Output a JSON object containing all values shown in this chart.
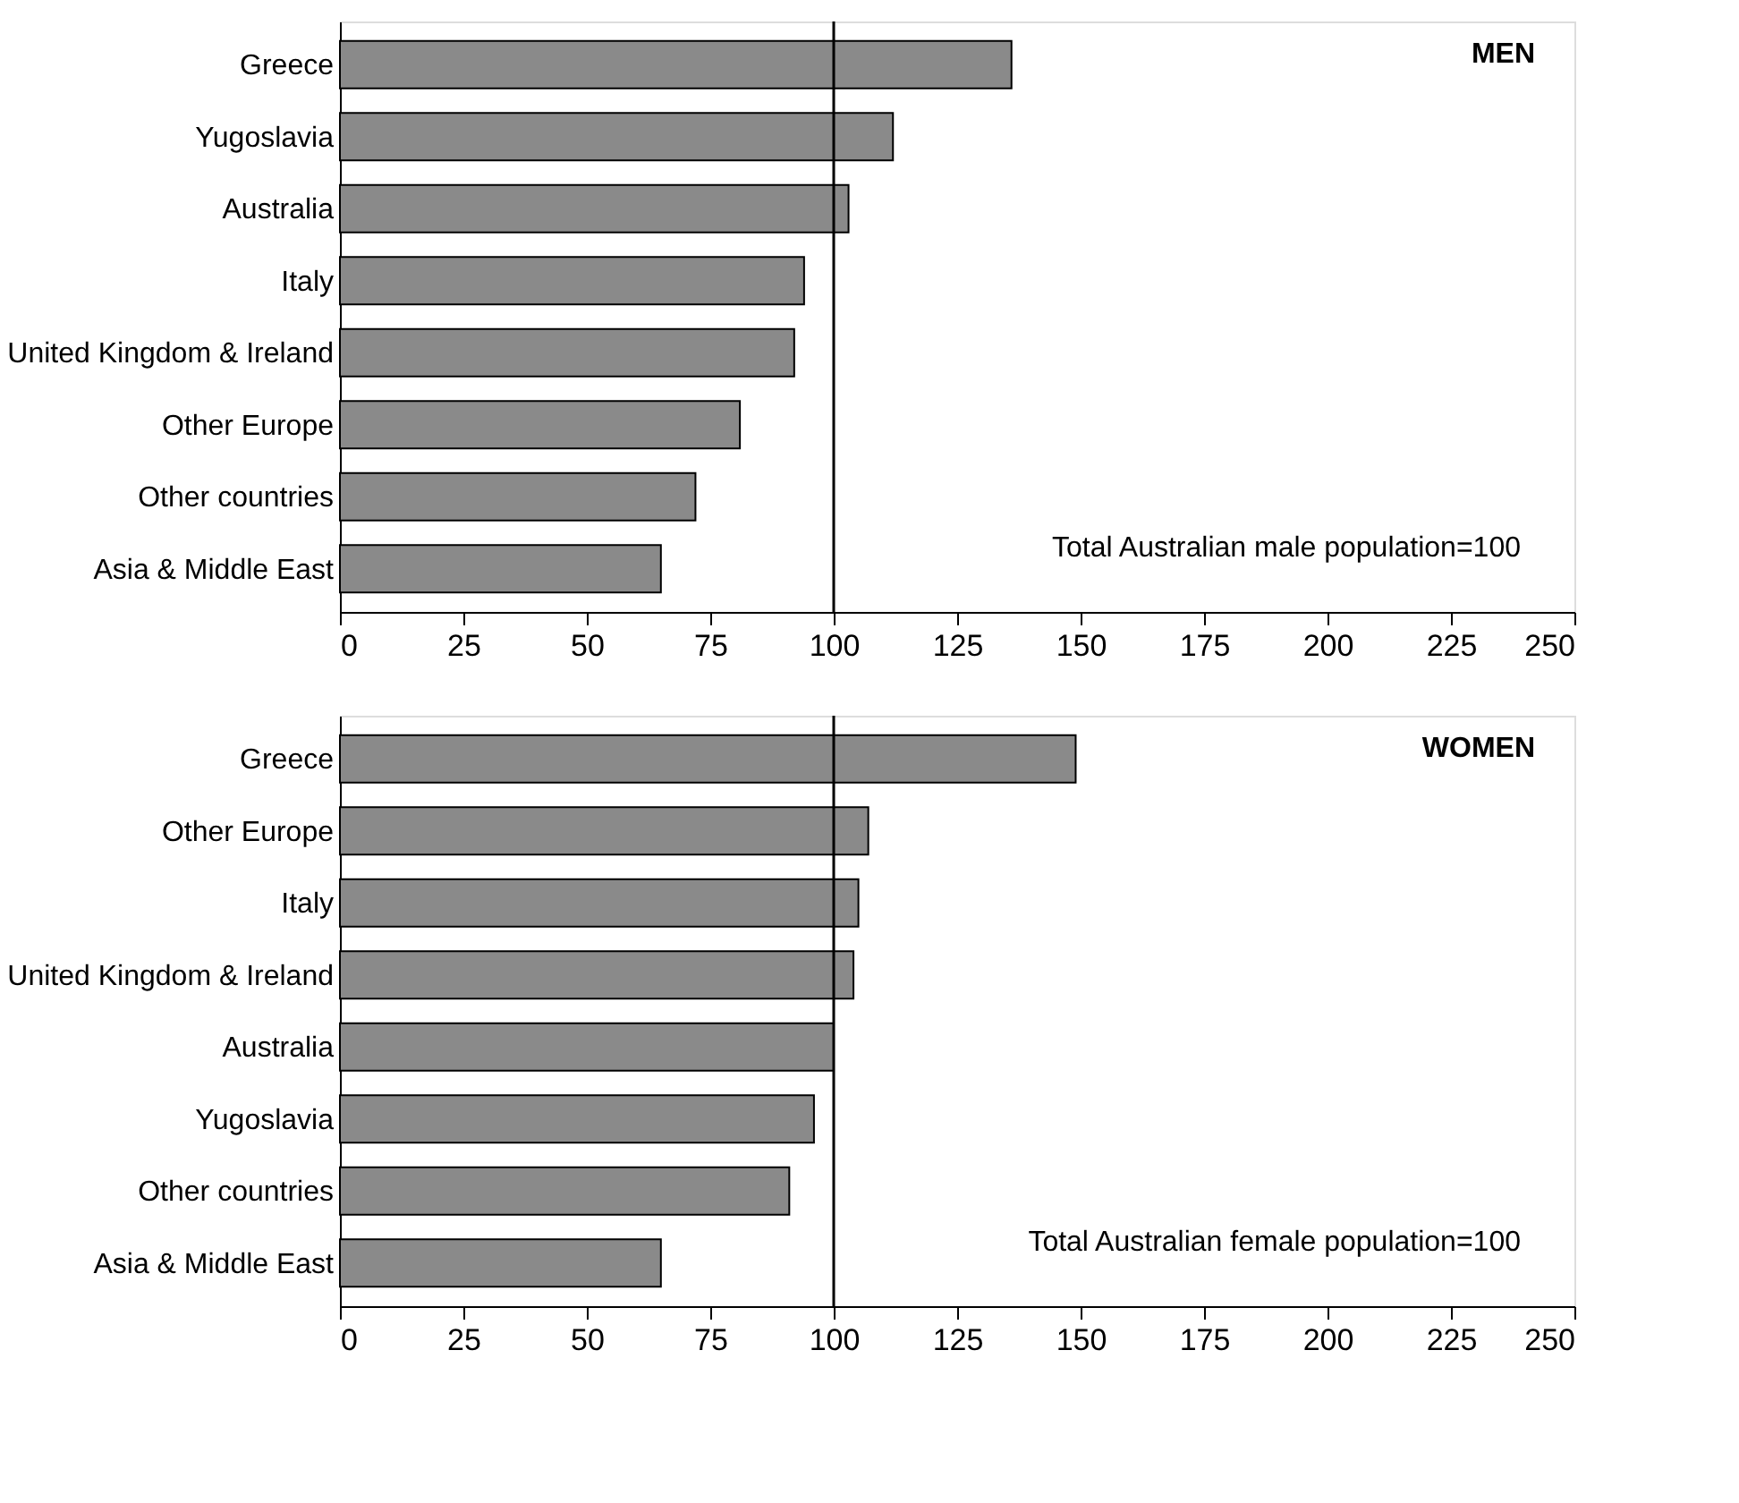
{
  "chart_data": [
    {
      "type": "bar",
      "orientation": "horizontal",
      "categories": [
        "Greece",
        "Yugoslavia",
        "Australia",
        "Italy",
        "United Kingdom & Ireland",
        "Other Europe",
        "Other countries",
        "Asia & Middle East"
      ],
      "values": [
        136,
        112,
        103,
        94,
        92,
        81,
        72,
        65
      ],
      "color": "#8a8a8a",
      "xlim": [
        0,
        250
      ],
      "xticks": [
        0,
        25,
        50,
        75,
        100,
        125,
        150,
        175,
        200,
        225,
        250
      ],
      "ref_lines": [
        {
          "axis": "x",
          "value": 100,
          "color": "#000000"
        }
      ],
      "annotations": [
        "MEN",
        "Total Australian male population=100"
      ]
    },
    {
      "type": "bar",
      "orientation": "horizontal",
      "categories": [
        "Greece",
        "Other Europe",
        "Italy",
        "United Kingdom & Ireland",
        "Australia",
        "Yugoslavia",
        "Other countries",
        "Asia & Middle East"
      ],
      "values": [
        149,
        107,
        105,
        104,
        100,
        96,
        91,
        65
      ],
      "color": "#8a8a8a",
      "xlim": [
        0,
        250
      ],
      "xticks": [
        0,
        25,
        50,
        75,
        100,
        125,
        150,
        175,
        200,
        225,
        250
      ],
      "ref_lines": [
        {
          "axis": "x",
          "value": 100,
          "color": "#000000"
        }
      ],
      "annotations": [
        "WOMEN",
        "Total Australian female population=100"
      ]
    }
  ]
}
